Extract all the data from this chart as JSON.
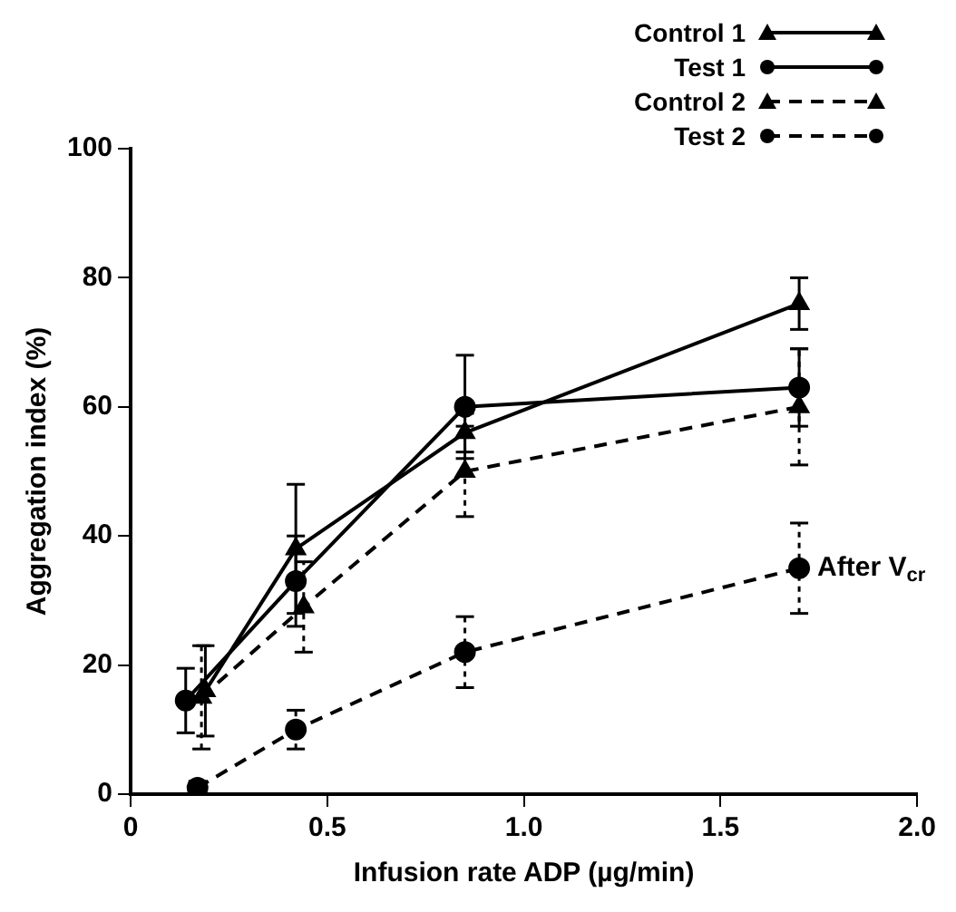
{
  "chart_data": {
    "type": "line",
    "xlabel": "Infusion rate ADP (µg/min)",
    "ylabel": "Aggregation index (%)",
    "x": [
      0.17,
      0.42,
      0.85,
      1.7
    ],
    "series": [
      {
        "name": "Control 1",
        "color": "#000000",
        "marker": "triangle",
        "line_style": "solid",
        "x": [
          0.19,
          0.42,
          0.85,
          1.7
        ],
        "values": [
          16,
          38,
          56,
          76
        ],
        "errors": [
          7,
          10,
          3,
          4
        ]
      },
      {
        "name": "Test 1",
        "color": "#000000",
        "marker": "circle",
        "line_style": "solid",
        "x": [
          0.14,
          0.42,
          0.85,
          1.7
        ],
        "values": [
          14.5,
          33,
          60,
          63
        ],
        "errors": [
          5,
          7,
          8,
          6
        ]
      },
      {
        "name": "Control 2",
        "color": "#000000",
        "marker": "triangle",
        "line_style": "dashed",
        "x": [
          0.18,
          0.44,
          0.85,
          1.7
        ],
        "values": [
          15,
          29,
          50,
          60
        ],
        "errors": [
          8,
          7,
          7,
          9
        ]
      },
      {
        "name": "Test 2",
        "color": "#000000",
        "marker": "circle",
        "line_style": "dashed",
        "values": [
          1,
          10,
          22,
          35
        ],
        "errors": [
          1,
          3,
          5.5,
          7
        ]
      }
    ],
    "annotations": [
      {
        "text": "After V$_{cr}$",
        "x": 1.7,
        "y": 35
      }
    ],
    "xlim": [
      0,
      2
    ],
    "xticks": [
      0,
      0.5,
      {
        "value": 1,
        "label": "1.0"
      },
      1.5,
      {
        "value": 2,
        "label": "2.0"
      }
    ],
    "ylim": [
      0,
      100
    ],
    "yticks": [
      0,
      20,
      40,
      60,
      80,
      100
    ],
    "grid": false,
    "legend": "top right"
  }
}
